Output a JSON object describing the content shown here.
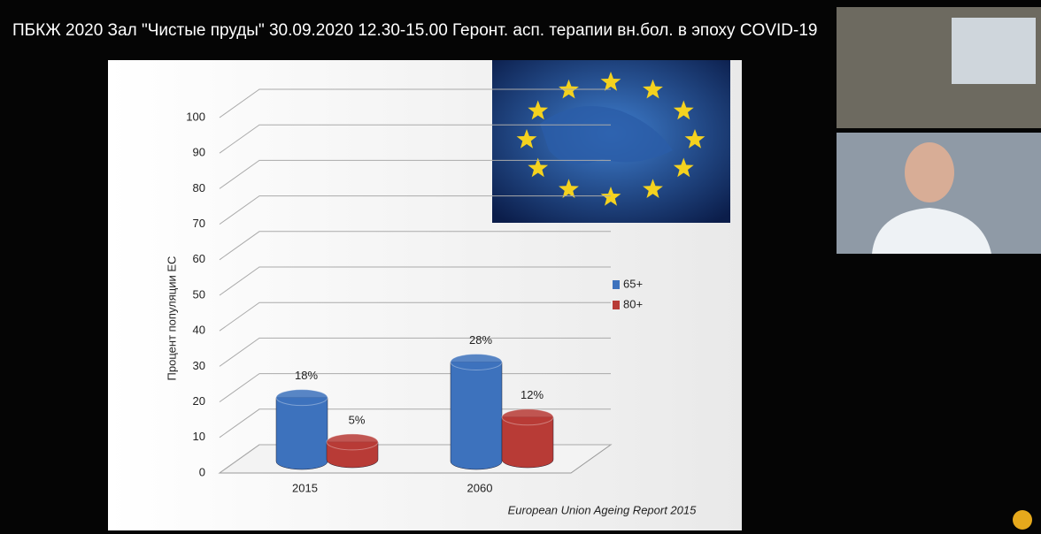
{
  "header_title": "ПБКЖ 2020 Зал \"Чистые пруды\" 30.09.2020 12.30-15.00 Геронт. асп. терапии вн.бол. в эпоху COVID-19",
  "chart_data": {
    "type": "bar3d",
    "y_label": "Процент популяции ЕС",
    "categories": [
      "2015",
      "2060"
    ],
    "series": [
      {
        "name": "65+",
        "color": "#3d72bd",
        "values": [
          18,
          28
        ],
        "value_labels": [
          "18%",
          "28%"
        ]
      },
      {
        "name": "80+",
        "color": "#b83b36",
        "values": [
          5,
          12
        ],
        "value_labels": [
          "5%",
          "12%"
        ]
      }
    ],
    "ylim": [
      0,
      100
    ],
    "yticks": [
      0,
      10,
      20,
      30,
      40,
      50,
      60,
      70,
      80,
      90,
      100
    ],
    "grid": true,
    "legend": "right",
    "source": "European Union Ageing Report 2015"
  }
}
